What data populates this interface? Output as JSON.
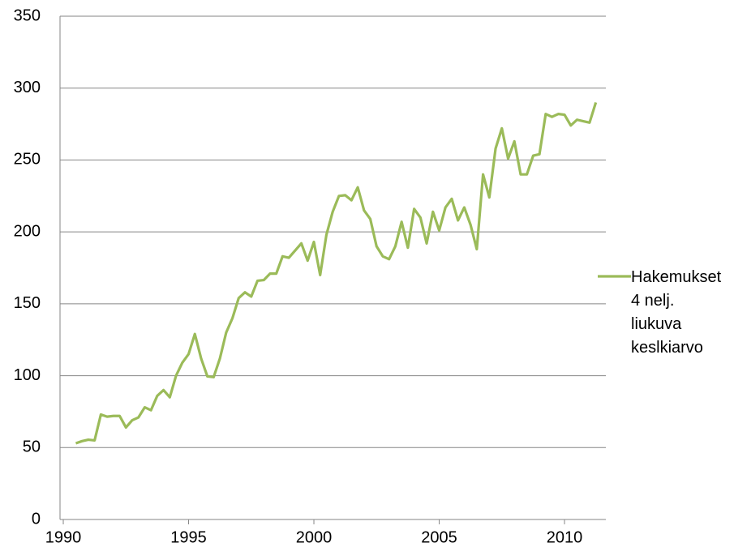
{
  "chart_data": {
    "type": "line",
    "x": [
      1990.5,
      1990.75,
      1991,
      1991.25,
      1991.5,
      1991.75,
      1992,
      1992.25,
      1992.5,
      1992.75,
      1993,
      1993.25,
      1993.5,
      1993.75,
      1994,
      1994.25,
      1994.5,
      1994.75,
      1995,
      1995.25,
      1995.5,
      1995.75,
      1996,
      1996.25,
      1996.5,
      1996.75,
      1997,
      1997.25,
      1997.5,
      1997.75,
      1998,
      1998.25,
      1998.5,
      1998.75,
      1999,
      1999.25,
      1999.5,
      1999.75,
      2000,
      2000.25,
      2000.5,
      2000.75,
      2001,
      2001.25,
      2001.5,
      2001.75,
      2002,
      2002.25,
      2002.5,
      2002.75,
      2003,
      2003.25,
      2003.5,
      2003.75,
      2004,
      2004.25,
      2004.5,
      2004.75,
      2005,
      2005.25,
      2005.5,
      2005.75,
      2006,
      2006.25,
      2006.5,
      2006.75,
      2007,
      2007.25,
      2007.5,
      2007.75,
      2008,
      2008.25,
      2008.5,
      2008.75,
      2009,
      2009.25,
      2009.5,
      2009.75,
      2010,
      2010.25,
      2010.5,
      2010.75,
      2011,
      2011.25
    ],
    "series": [
      {
        "name": "Hakemukset 4 nelj. liukuva keslkiarvo",
        "color": "#9bbb59",
        "values": [
          53,
          54.5,
          55.5,
          55,
          73,
          71.5,
          72,
          72,
          64,
          69,
          71,
          78,
          76,
          86,
          90,
          85,
          100,
          109,
          115,
          129,
          112,
          99.5,
          99,
          112,
          130,
          140,
          154,
          158,
          155,
          166,
          166.5,
          171,
          171,
          183,
          182,
          187,
          192,
          180,
          193,
          170,
          198,
          214,
          225,
          225.5,
          222,
          231,
          215,
          209,
          190,
          183,
          181,
          190,
          207,
          189,
          216,
          210,
          192,
          214,
          201,
          217,
          223,
          208,
          217,
          205,
          188,
          240,
          224,
          258,
          272,
          251,
          263,
          240,
          240,
          253,
          254,
          282,
          280,
          282,
          281.5,
          274,
          278,
          277,
          276,
          290
        ]
      }
    ],
    "xlim": [
      1989.87,
      2011.65
    ],
    "xticks": [
      1990,
      1995,
      2000,
      2005,
      2010
    ],
    "ylim": [
      0,
      350
    ],
    "yticks": [
      0,
      50,
      100,
      150,
      200,
      250,
      300,
      350
    ],
    "grid": true,
    "legend": "right"
  }
}
